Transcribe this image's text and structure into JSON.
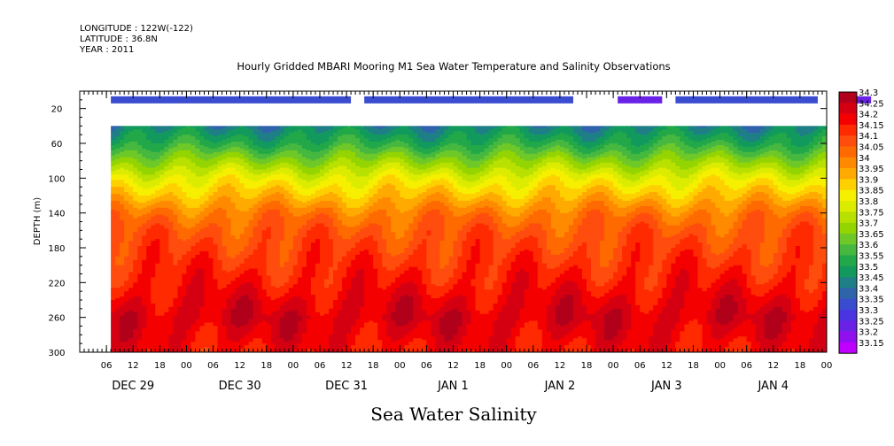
{
  "header": {
    "longitude": "LONGITUDE : 122W(-122)",
    "latitude": "LATITUDE : 36.8N",
    "year": "YEAR : 2011"
  },
  "chart_data": {
    "type": "heatmap",
    "title": "Hourly Gridded MBARI Mooring M1 Sea Water Temperature and Salinity Observations",
    "xlabel": "Sea Water Salinity",
    "ylabel": "DEPTH (m)",
    "y_ticks": [
      20,
      60,
      100,
      140,
      180,
      220,
      260,
      300
    ],
    "ylim": [
      300,
      0
    ],
    "x_hour_ticks": [
      "06",
      "12",
      "18",
      "00",
      "06",
      "12",
      "18",
      "00",
      "06",
      "12",
      "18",
      "00",
      "06",
      "12",
      "18",
      "00",
      "06",
      "12",
      "18",
      "00",
      "06",
      "12",
      "18",
      "00",
      "06",
      "12",
      "18",
      "00"
    ],
    "x_date_labels": [
      "DEC 29",
      "DEC 30",
      "DEC 31",
      "JAN  1",
      "JAN  2",
      "JAN  3",
      "JAN  4"
    ],
    "x_range_hours": [
      0,
      168
    ],
    "data_start_hour": 7,
    "data_depth_range": [
      40,
      300
    ],
    "surface_depth": 10,
    "surface_segments": [
      {
        "start": 7,
        "end": 61,
        "value": 33.35
      },
      {
        "start": 64,
        "end": 111,
        "value": 33.35
      },
      {
        "start": 121,
        "end": 131,
        "value": 33.25
      },
      {
        "start": 134,
        "end": 166,
        "value": 33.35
      },
      {
        "start": 174,
        "end": 178,
        "value": 33.25
      }
    ],
    "depth_profile": {
      "depths": [
        40,
        60,
        80,
        100,
        120,
        140,
        160,
        180,
        200,
        220,
        240,
        260,
        280,
        300
      ],
      "salinity": [
        33.48,
        33.58,
        33.72,
        33.85,
        33.95,
        34.05,
        34.11,
        34.14,
        34.17,
        34.2,
        34.24,
        34.27,
        34.24,
        34.21
      ]
    },
    "colorbar": {
      "levels": [
        "34.3",
        "34.25",
        "34.2",
        "34.15",
        "34.1",
        "34.05",
        "34",
        "33.95",
        "33.9",
        "33.85",
        "33.8",
        "33.75",
        "33.7",
        "33.65",
        "33.6",
        "33.55",
        "33.5",
        "33.45",
        "33.4",
        "33.35",
        "33.3",
        "33.25",
        "33.2",
        "33.15"
      ],
      "colors": [
        "#b0001a",
        "#d40012",
        "#f50000",
        "#ff2a00",
        "#ff4d0e",
        "#ff6a00",
        "#ff8a00",
        "#ffaa00",
        "#ffd000",
        "#f6f000",
        "#dcec00",
        "#b8e000",
        "#94d400",
        "#6ec828",
        "#46b840",
        "#22a848",
        "#129a5e",
        "#1e7f86",
        "#2f63aa",
        "#3a4cd0",
        "#4a33e0",
        "#6a22e6",
        "#9010ee",
        "#c000ff"
      ]
    }
  }
}
